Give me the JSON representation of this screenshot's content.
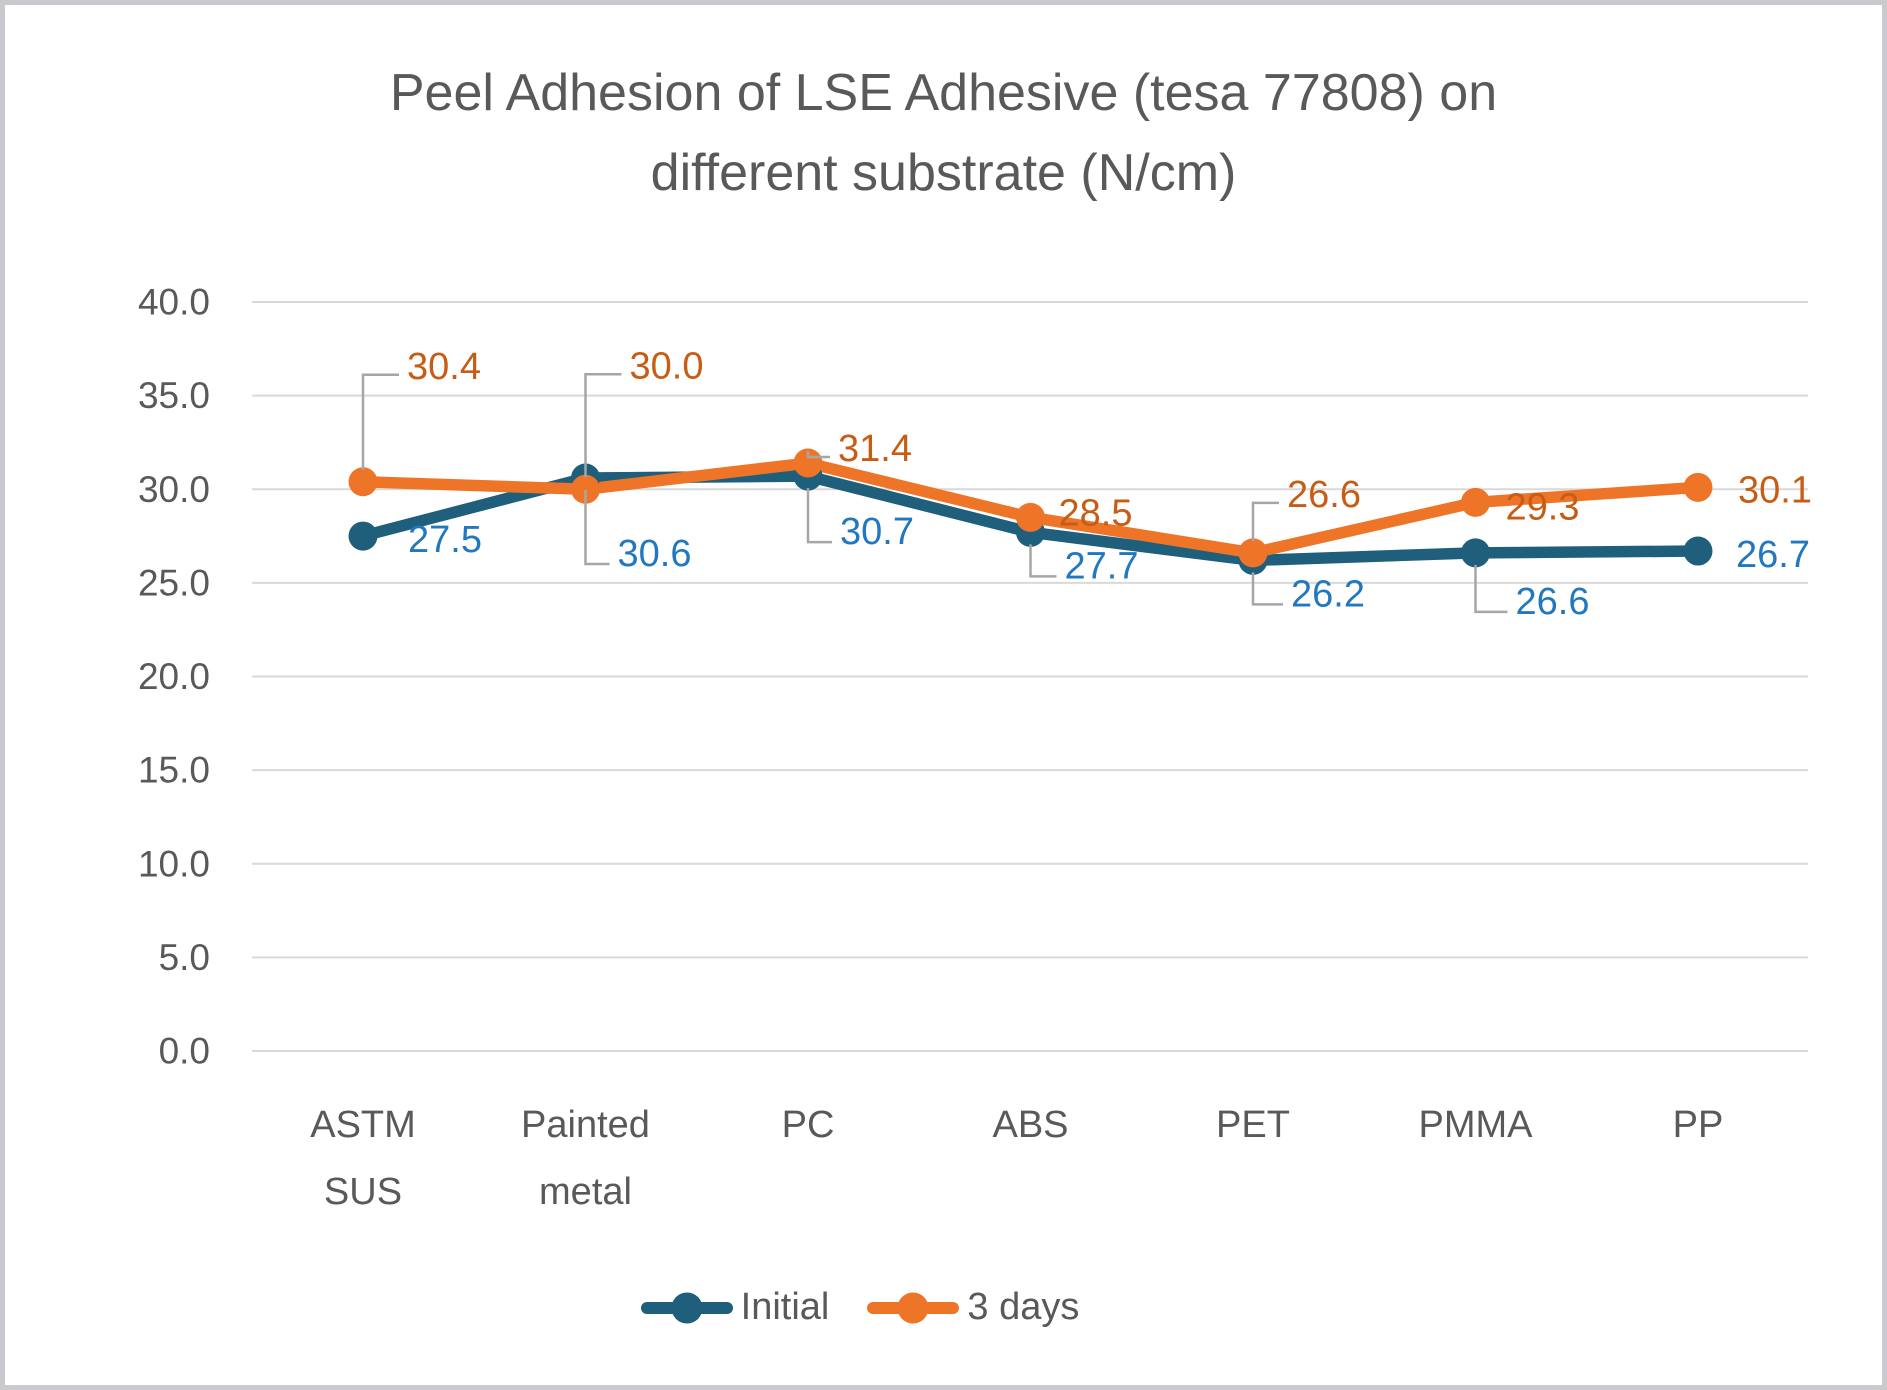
{
  "page": {
    "background": "#ffffff",
    "border_color": "#c9c9ce"
  },
  "chart_data": {
    "type": "line",
    "title": "Peel Adhesion of LSE Adhesive (tesa 77808) on different substrate (N/cm)",
    "title_lines": [
      "Peel Adhesion of LSE Adhesive (tesa 77808) on",
      "different substrate (N/cm)"
    ],
    "categories": [
      "ASTM SUS",
      "Painted metal",
      "PC",
      "ABS",
      "PET",
      "PMMA",
      "PP"
    ],
    "category_label_lines": [
      [
        "ASTM",
        "SUS"
      ],
      [
        "Painted",
        "metal"
      ],
      [
        "PC"
      ],
      [
        "ABS"
      ],
      [
        "PET"
      ],
      [
        "PMMA"
      ],
      [
        "PP"
      ]
    ],
    "y_axis": {
      "min": 0,
      "max": 40,
      "step": 5,
      "tick_labels": [
        "0.0",
        "5.0",
        "10.0",
        "15.0",
        "20.0",
        "25.0",
        "30.0",
        "35.0",
        "40.0"
      ]
    },
    "grid": true,
    "legend_position": "bottom",
    "series": [
      {
        "name": "Initial",
        "color": "#1f5f7c",
        "label_color": "#2278be",
        "values": [
          27.5,
          30.6,
          30.7,
          27.7,
          26.2,
          26.6,
          26.7
        ],
        "data_labels": [
          "27.5",
          "30.6",
          "30.7",
          "27.7",
          "26.2",
          "26.6",
          "26.7"
        ],
        "label_placements": [
          {
            "dx": 45,
            "dy": 4,
            "leader": null
          },
          {
            "dx": 32,
            "dy": 76,
            "leader": "down"
          },
          {
            "dx": 32,
            "dy": 56,
            "leader": "down"
          },
          {
            "dx": 34,
            "dy": 34,
            "leader": "down"
          },
          {
            "dx": 38,
            "dy": 34,
            "leader": "down"
          },
          {
            "dx": 40,
            "dy": 49,
            "leader": "down"
          },
          {
            "dx": 38,
            "dy": 4,
            "leader": null
          }
        ]
      },
      {
        "name": "3 days",
        "color": "#ee7528",
        "label_color": "#c75c15",
        "values": [
          30.4,
          30.0,
          31.4,
          28.5,
          26.6,
          29.3,
          30.1
        ],
        "data_labels": [
          "30.4",
          "30.0",
          "31.4",
          "28.5",
          "26.6",
          "29.3",
          "30.1"
        ],
        "label_placements": [
          {
            "dx": 44,
            "dy": -115,
            "leader": "up"
          },
          {
            "dx": 44,
            "dy": -123,
            "leader": "up"
          },
          {
            "dx": 30,
            "dy": -14,
            "leader": "up"
          },
          {
            "dx": 28,
            "dy": -4,
            "leader": null
          },
          {
            "dx": 34,
            "dy": -58,
            "leader": "up"
          },
          {
            "dx": 30,
            "dy": 5,
            "leader": null
          },
          {
            "dx": 40,
            "dy": 3,
            "leader": null
          }
        ]
      }
    ],
    "colors": {
      "gridline": "#d9d9d9",
      "leader": "#a6a6a6",
      "text": "#595959"
    }
  }
}
